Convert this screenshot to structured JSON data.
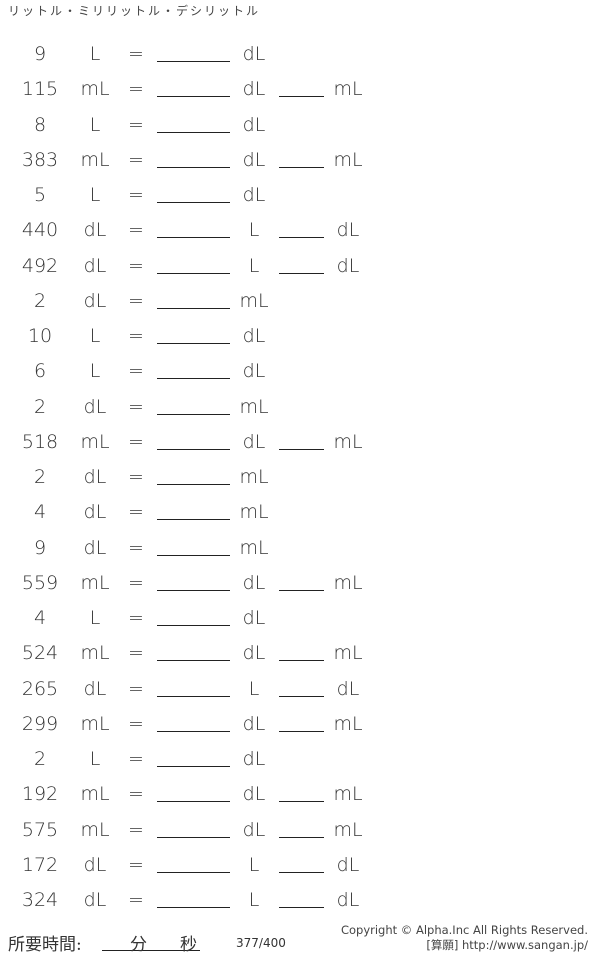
{
  "title": "リットル・ミリリットル・デシリットル",
  "equals": "=",
  "problems": [
    {
      "value": "9",
      "unit": "L",
      "answer_unit1": "dL",
      "answer_unit2": ""
    },
    {
      "value": "115",
      "unit": "mL",
      "answer_unit1": "dL",
      "answer_unit2": "mL"
    },
    {
      "value": "8",
      "unit": "L",
      "answer_unit1": "dL",
      "answer_unit2": ""
    },
    {
      "value": "383",
      "unit": "mL",
      "answer_unit1": "dL",
      "answer_unit2": "mL"
    },
    {
      "value": "5",
      "unit": "L",
      "answer_unit1": "dL",
      "answer_unit2": ""
    },
    {
      "value": "440",
      "unit": "dL",
      "answer_unit1": "L",
      "answer_unit2": "dL"
    },
    {
      "value": "492",
      "unit": "dL",
      "answer_unit1": "L",
      "answer_unit2": "dL"
    },
    {
      "value": "2",
      "unit": "dL",
      "answer_unit1": "mL",
      "answer_unit2": ""
    },
    {
      "value": "10",
      "unit": "L",
      "answer_unit1": "dL",
      "answer_unit2": ""
    },
    {
      "value": "6",
      "unit": "L",
      "answer_unit1": "dL",
      "answer_unit2": ""
    },
    {
      "value": "2",
      "unit": "dL",
      "answer_unit1": "mL",
      "answer_unit2": ""
    },
    {
      "value": "518",
      "unit": "mL",
      "answer_unit1": "dL",
      "answer_unit2": "mL"
    },
    {
      "value": "2",
      "unit": "dL",
      "answer_unit1": "mL",
      "answer_unit2": ""
    },
    {
      "value": "4",
      "unit": "dL",
      "answer_unit1": "mL",
      "answer_unit2": ""
    },
    {
      "value": "9",
      "unit": "dL",
      "answer_unit1": "mL",
      "answer_unit2": ""
    },
    {
      "value": "559",
      "unit": "mL",
      "answer_unit1": "dL",
      "answer_unit2": "mL"
    },
    {
      "value": "4",
      "unit": "L",
      "answer_unit1": "dL",
      "answer_unit2": ""
    },
    {
      "value": "524",
      "unit": "mL",
      "answer_unit1": "dL",
      "answer_unit2": "mL"
    },
    {
      "value": "265",
      "unit": "dL",
      "answer_unit1": "L",
      "answer_unit2": "dL"
    },
    {
      "value": "299",
      "unit": "mL",
      "answer_unit1": "dL",
      "answer_unit2": "mL"
    },
    {
      "value": "2",
      "unit": "L",
      "answer_unit1": "dL",
      "answer_unit2": ""
    },
    {
      "value": "192",
      "unit": "mL",
      "answer_unit1": "dL",
      "answer_unit2": "mL"
    },
    {
      "value": "575",
      "unit": "mL",
      "answer_unit1": "dL",
      "answer_unit2": "mL"
    },
    {
      "value": "172",
      "unit": "dL",
      "answer_unit1": "L",
      "answer_unit2": "dL"
    },
    {
      "value": "324",
      "unit": "dL",
      "answer_unit1": "L",
      "answer_unit2": "dL"
    }
  ],
  "footer": {
    "time_label": "所要時間:",
    "minutes": "分",
    "seconds": "秒",
    "page": "377/400",
    "copyright": "Copyright © Alpha.Inc All Rights Reserved.",
    "site": "[算願] http://www.sangan.jp/"
  }
}
